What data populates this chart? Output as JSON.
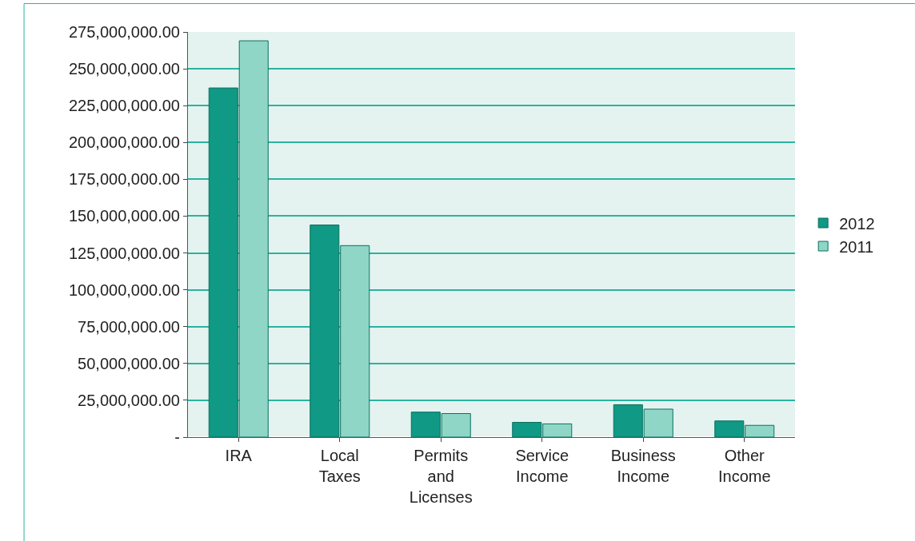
{
  "chart_data": {
    "type": "bar",
    "categories": [
      "IRA",
      "Local Taxes",
      "Permits and Licenses",
      "Service Income",
      "Business Income",
      "Other Income"
    ],
    "series": [
      {
        "name": "2012",
        "color": "#109985",
        "values": [
          237000000,
          144000000,
          17000000,
          10000000,
          22000000,
          11000000
        ]
      },
      {
        "name": "2011",
        "color": "#8fd6c6",
        "values": [
          269000000,
          130000000,
          16000000,
          9000000,
          19000000,
          8000000
        ]
      }
    ],
    "ylim": [
      0,
      275000000
    ],
    "yticks": [
      {
        "value": 0,
        "label": "-"
      },
      {
        "value": 25000000,
        "label": "25,000,000.00"
      },
      {
        "value": 50000000,
        "label": "50,000,000.00"
      },
      {
        "value": 75000000,
        "label": "75,000,000.00"
      },
      {
        "value": 100000000,
        "label": "100,000,000.00"
      },
      {
        "value": 125000000,
        "label": "125,000,000.00"
      },
      {
        "value": 150000000,
        "label": "150,000,000.00"
      },
      {
        "value": 175000000,
        "label": "175,000,000.00"
      },
      {
        "value": 200000000,
        "label": "200,000,000.00"
      },
      {
        "value": 225000000,
        "label": "225,000,000.00"
      },
      {
        "value": 250000000,
        "label": "250,000,000.00"
      },
      {
        "value": 275000000,
        "label": "275,000,000.00"
      }
    ],
    "grid": "y",
    "legend": "right"
  }
}
